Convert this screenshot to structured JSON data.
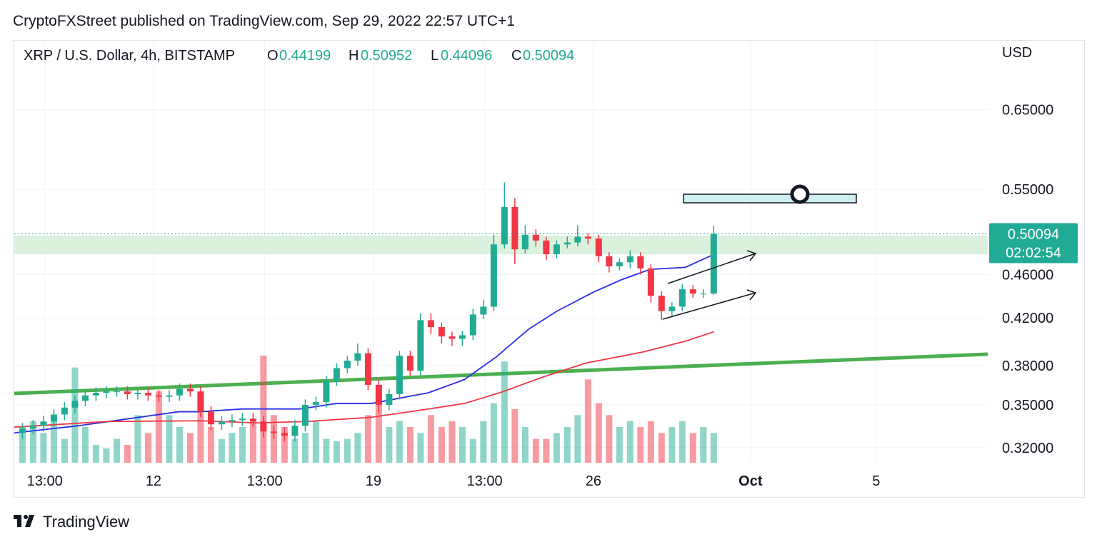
{
  "header": {
    "published": "CryptoFXStreet published on TradingView.com, Sep 29, 2022 22:57 UTC+1"
  },
  "chart_data": {
    "type": "candlestick",
    "title": "XRP / U.S. Dollar, 4h, BITSTAMP",
    "ohlc_labels": [
      "O",
      "H",
      "L",
      "C"
    ],
    "y_axis_label": "USD",
    "countdown": "02:02:54",
    "log_scale": true,
    "grid": true,
    "up_color": "#22ab94",
    "down_color": "#f23645",
    "ylim": [
      0.31,
      0.75
    ],
    "yticks": [
      {
        "value": 0.65,
        "label": "0.65000"
      },
      {
        "value": 0.55,
        "label": "0.55000"
      },
      {
        "value": 0.46,
        "label": "0.46000"
      },
      {
        "value": 0.42,
        "label": "0.42000"
      },
      {
        "value": 0.38,
        "label": "0.38000"
      },
      {
        "value": 0.35,
        "label": "0.35000"
      },
      {
        "value": 0.32,
        "label": "0.32000"
      }
    ],
    "xlim": [
      7.57,
      38.55
    ],
    "xticks": [
      {
        "value": 8.54,
        "label": "13:00"
      },
      12,
      {
        "value": 15.54,
        "label": "13:00"
      },
      19,
      {
        "value": 22.54,
        "label": "13:00"
      },
      26,
      {
        "value": 31,
        "label": "Oct"
      },
      {
        "value": 35,
        "label": "5"
      }
    ],
    "x": [
      7.83,
      8.17,
      8.5,
      8.83,
      9.17,
      9.5,
      9.83,
      10.17,
      10.5,
      10.83,
      11.17,
      11.5,
      11.83,
      12.17,
      12.5,
      12.83,
      13.17,
      13.5,
      13.83,
      14.17,
      14.5,
      14.83,
      15.17,
      15.5,
      15.83,
      16.17,
      16.5,
      16.83,
      17.17,
      17.5,
      17.83,
      18.17,
      18.5,
      18.83,
      19.17,
      19.5,
      19.83,
      20.17,
      20.5,
      20.83,
      21.17,
      21.5,
      21.83,
      22.17,
      22.5,
      22.83,
      23.17,
      23.5,
      23.83,
      24.17,
      24.5,
      24.83,
      25.17,
      25.5,
      25.83,
      26.17,
      26.5,
      26.83,
      27.17,
      27.5,
      27.83,
      28.17,
      28.5,
      28.83,
      29.17,
      29.5,
      29.83
    ],
    "open": [
      0.33,
      0.333,
      0.335,
      0.338,
      0.343,
      0.348,
      0.353,
      0.357,
      0.359,
      0.36,
      0.36,
      0.358,
      0.359,
      0.357,
      0.356,
      0.357,
      0.362,
      0.36,
      0.345,
      0.336,
      0.338,
      0.339,
      0.34,
      0.338,
      0.331,
      0.33,
      0.328,
      0.335,
      0.35,
      0.352,
      0.368,
      0.378,
      0.384,
      0.39,
      0.365,
      0.35,
      0.358,
      0.388,
      0.376,
      0.418,
      0.412,
      0.404,
      0.402,
      0.405,
      0.423,
      0.43,
      0.49,
      0.53,
      0.485,
      0.5,
      0.494,
      0.48,
      0.49,
      0.492,
      0.498,
      0.496,
      0.478,
      0.468,
      0.472,
      0.478,
      0.466,
      0.44,
      0.426,
      0.43,
      0.446,
      0.442,
      0.44199
    ],
    "high": [
      0.337,
      0.339,
      0.342,
      0.347,
      0.352,
      0.357,
      0.361,
      0.363,
      0.364,
      0.364,
      0.364,
      0.363,
      0.363,
      0.361,
      0.361,
      0.366,
      0.366,
      0.364,
      0.349,
      0.342,
      0.343,
      0.344,
      0.344,
      0.342,
      0.335,
      0.334,
      0.339,
      0.354,
      0.356,
      0.372,
      0.382,
      0.388,
      0.398,
      0.394,
      0.369,
      0.362,
      0.392,
      0.392,
      0.424,
      0.424,
      0.416,
      0.408,
      0.409,
      0.428,
      0.436,
      0.5,
      0.558,
      0.54,
      0.51,
      0.506,
      0.498,
      0.494,
      0.498,
      0.51,
      0.502,
      0.5,
      0.482,
      0.476,
      0.484,
      0.482,
      0.47,
      0.444,
      0.434,
      0.451,
      0.45,
      0.446,
      0.50952
    ],
    "low": [
      0.326,
      0.329,
      0.331,
      0.334,
      0.339,
      0.344,
      0.349,
      0.353,
      0.355,
      0.356,
      0.354,
      0.354,
      0.353,
      0.352,
      0.352,
      0.353,
      0.356,
      0.341,
      0.332,
      0.332,
      0.334,
      0.335,
      0.334,
      0.327,
      0.326,
      0.324,
      0.324,
      0.331,
      0.346,
      0.348,
      0.364,
      0.374,
      0.38,
      0.361,
      0.344,
      0.346,
      0.354,
      0.372,
      0.372,
      0.406,
      0.398,
      0.396,
      0.396,
      0.401,
      0.419,
      0.426,
      0.486,
      0.47,
      0.481,
      0.488,
      0.474,
      0.476,
      0.486,
      0.488,
      0.49,
      0.472,
      0.462,
      0.464,
      0.466,
      0.46,
      0.434,
      0.418,
      0.422,
      0.426,
      0.438,
      0.438,
      0.44096
    ],
    "close": [
      0.333,
      0.335,
      0.338,
      0.343,
      0.348,
      0.353,
      0.357,
      0.359,
      0.36,
      0.36,
      0.358,
      0.359,
      0.357,
      0.356,
      0.357,
      0.362,
      0.36,
      0.345,
      0.336,
      0.338,
      0.339,
      0.34,
      0.338,
      0.331,
      0.33,
      0.328,
      0.335,
      0.35,
      0.352,
      0.368,
      0.378,
      0.384,
      0.39,
      0.365,
      0.35,
      0.358,
      0.388,
      0.376,
      0.418,
      0.412,
      0.404,
      0.402,
      0.405,
      0.423,
      0.43,
      0.49,
      0.53,
      0.485,
      0.5,
      0.494,
      0.48,
      0.49,
      0.492,
      0.498,
      0.496,
      0.478,
      0.468,
      0.472,
      0.478,
      0.466,
      0.44,
      0.426,
      0.43,
      0.446,
      0.442,
      0.442,
      0.50094
    ],
    "volume": [
      30,
      35,
      25,
      40,
      20,
      80,
      30,
      15,
      12,
      20,
      15,
      40,
      25,
      60,
      40,
      30,
      25,
      45,
      30,
      20,
      25,
      30,
      35,
      90,
      40,
      30,
      20,
      25,
      35,
      20,
      18,
      20,
      25,
      40,
      60,
      30,
      35,
      30,
      25,
      40,
      30,
      35,
      30,
      20,
      35,
      50,
      85,
      45,
      30,
      20,
      20,
      25,
      30,
      40,
      70,
      50,
      40,
      30,
      35,
      30,
      35,
      25,
      30,
      35,
      25,
      30,
      25
    ],
    "lines": [
      {
        "color": "#2a2ee8",
        "x": [
          7.57,
          9.61,
          12.8,
          13.48,
          14.84,
          16.66,
          17.8,
          18.93,
          20.75,
          21.89,
          22.91,
          23.93,
          24.84,
          25.98,
          26.89,
          27.8,
          28.93,
          29.84
        ],
        "values": [
          0.33,
          0.335,
          0.345,
          0.345,
          0.347,
          0.347,
          0.351,
          0.351,
          0.359,
          0.369,
          0.387,
          0.41,
          0.426,
          0.443,
          0.455,
          0.465,
          0.467,
          0.48
        ]
      },
      {
        "color": "#f23645",
        "x": [
          7.57,
          10.52,
          13.48,
          15.3,
          16.89,
          18.93,
          20.75,
          21.89,
          23.02,
          24.39,
          25.75,
          27.57,
          28.93,
          29.84
        ],
        "values": [
          0.334,
          0.338,
          0.3385,
          0.337,
          0.338,
          0.341,
          0.347,
          0.351,
          0.359,
          0.371,
          0.382,
          0.391,
          0.4,
          0.408
        ]
      }
    ]
  },
  "footer": {
    "brand": "TradingView"
  }
}
